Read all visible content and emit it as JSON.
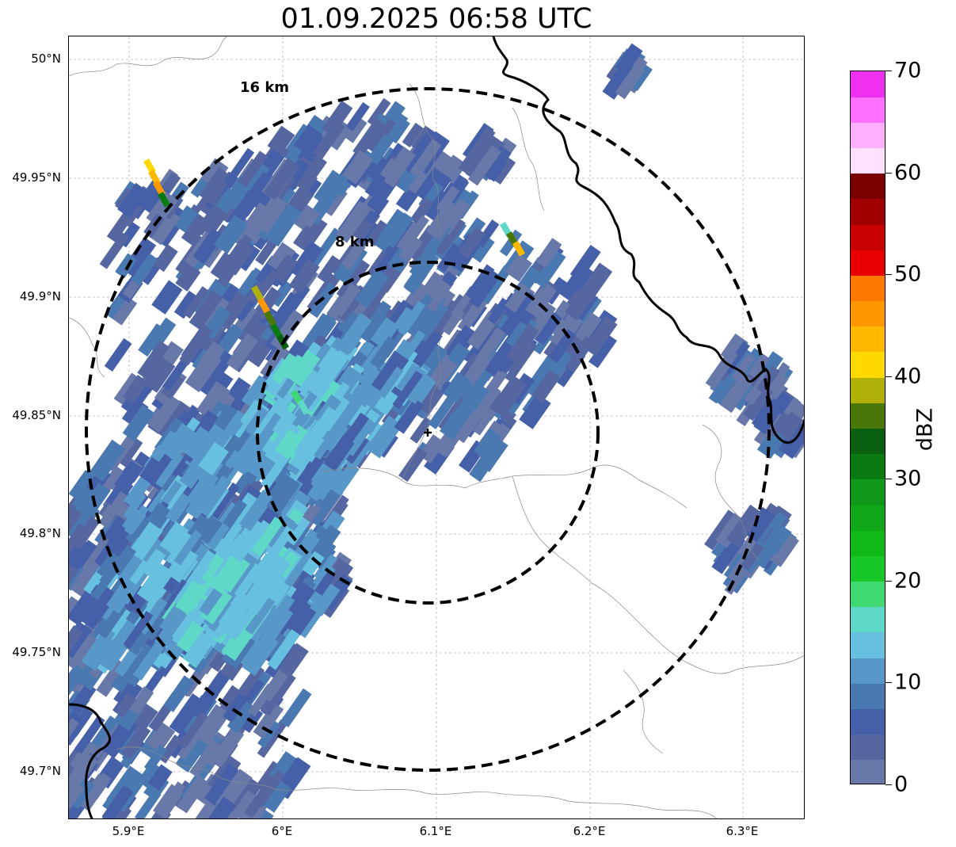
{
  "title": "01.09.2025 06:58 UTC",
  "map": {
    "lat_ticks": [
      "50°N",
      "49.95°N",
      "49.9°N",
      "49.85°N",
      "49.8°N",
      "49.75°N",
      "49.7°N"
    ],
    "lon_ticks": [
      "5.9°E",
      "6°E",
      "6.1°E",
      "6.2°E",
      "6.3°E"
    ],
    "extent": {
      "lon_min": 5.86,
      "lon_max": 6.34,
      "lat_min": 49.68,
      "lat_max": 50.01
    },
    "radar_site": {
      "lon": 6.095,
      "lat": 49.843
    },
    "rings": [
      {
        "radius_km": 8,
        "label": "8 km"
      },
      {
        "radius_km": 16,
        "label": "16 km"
      }
    ]
  },
  "colorbar": {
    "label": "dBZ",
    "ticks": [
      "70",
      "60",
      "50",
      "40",
      "30",
      "20",
      "10",
      "0"
    ],
    "min": 0,
    "max": 70,
    "colors": [
      "#6878a8",
      "#5566a0",
      "#4560a8",
      "#4a78b0",
      "#5898c8",
      "#68c0e0",
      "#60d8c8",
      "#40d870",
      "#18c828",
      "#10b818",
      "#10a818",
      "#10981a",
      "#0a7a12",
      "#086010",
      "#4a7808",
      "#b0b008",
      "#ffd800",
      "#ffb800",
      "#ff9800",
      "#ff7800",
      "#e80000",
      "#c80000",
      "#a00000",
      "#7a0000",
      "#ffe0ff",
      "#ffb0ff",
      "#ff70ff",
      "#f030f0"
    ]
  }
}
